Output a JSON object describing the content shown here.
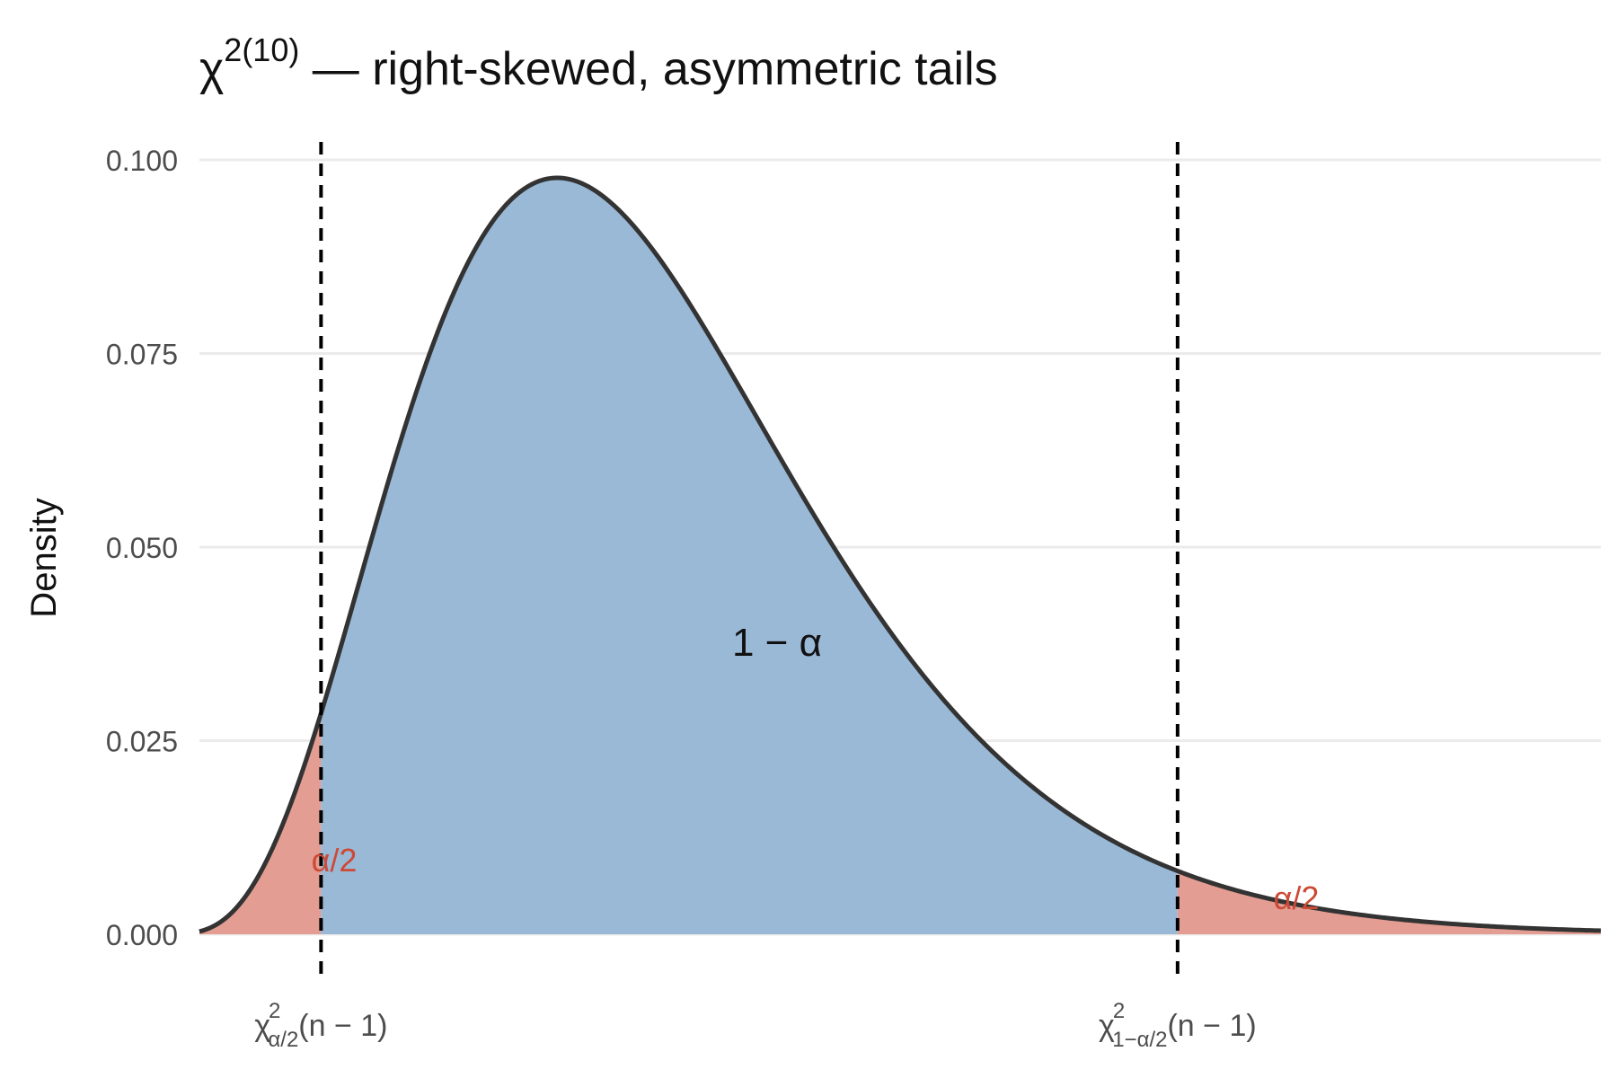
{
  "chart_data": {
    "type": "area",
    "title": {
      "symbol": "χ",
      "superscript": "2(10)",
      "rest": " — right-skewed, asymmetric tails"
    },
    "ylabel": "Density",
    "distribution": "chi-squared",
    "df": 10,
    "xlim": [
      0.8,
      29.0
    ],
    "ylim": [
      0.0,
      0.1
    ],
    "y_ticks": [
      "0.000",
      "0.025",
      "0.050",
      "0.075",
      "0.100"
    ],
    "y_tick_values": [
      0.0,
      0.025,
      0.05,
      0.075,
      0.1
    ],
    "grid": true,
    "critical_values": {
      "lower": 3.247,
      "upper": 20.483
    },
    "x_tick_labels": {
      "lower": {
        "base": "χ",
        "sup": "2",
        "sub": "α/2",
        "tail": "(n − 1)"
      },
      "upper": {
        "base": "χ",
        "sup": "2",
        "sub": "1−α/2",
        "tail": "(n − 1)"
      }
    },
    "regions": {
      "center_label": "1 − α",
      "left_tail_label": "α/2",
      "right_tail_label": "α/2"
    },
    "colors": {
      "center_fill": "#9ab9d7",
      "tail_fill": "#e49d92",
      "tail_label": "#cc4a36",
      "curve": "#333333",
      "grid": "#ebebeb",
      "dashed": "#000000"
    }
  }
}
